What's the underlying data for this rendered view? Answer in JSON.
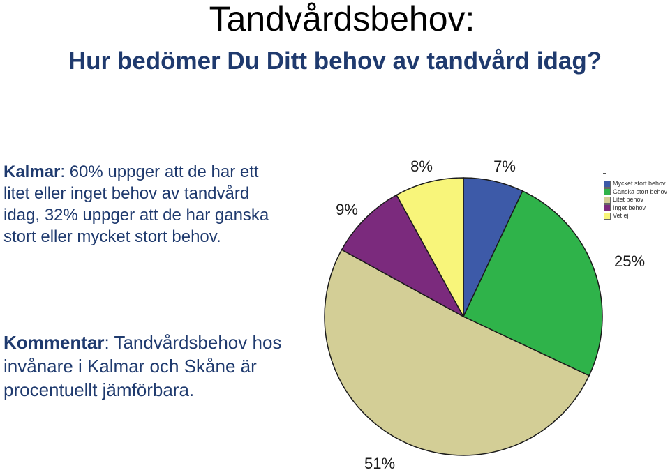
{
  "title": "Tandvårdsbehov:",
  "subtitle": "Hur bedömer Du Ditt behov av tandvård idag?",
  "kalmar": {
    "label": "Kalmar",
    "text": ": 60% uppger att de har ett litet eller inget behov av tandvård idag, 32% uppger att de har ganska stort eller mycket stort behov."
  },
  "comment": {
    "label": "Kommentar",
    "text": ": Tandvårdsbehov hos invånare i Kalmar och Skåne är procentuellt jämförbara."
  },
  "chart_data": {
    "type": "pie",
    "slices": [
      {
        "name": "Mycket stort behov",
        "value": 7,
        "label": "7%",
        "color": "#3d5aa8"
      },
      {
        "name": "Ganska stort behov",
        "value": 25,
        "label": "25%",
        "color": "#2fb34a"
      },
      {
        "name": "Litet behov",
        "value": 51,
        "label": "51%",
        "color": "#d3ce96"
      },
      {
        "name": "Inget behov",
        "value": 9,
        "label": "9%",
        "color": "#7b2a7d"
      },
      {
        "name": "Vet ej",
        "value": 8,
        "label": "8%",
        "color": "#f8f57a"
      }
    ],
    "legend_position": "right"
  }
}
